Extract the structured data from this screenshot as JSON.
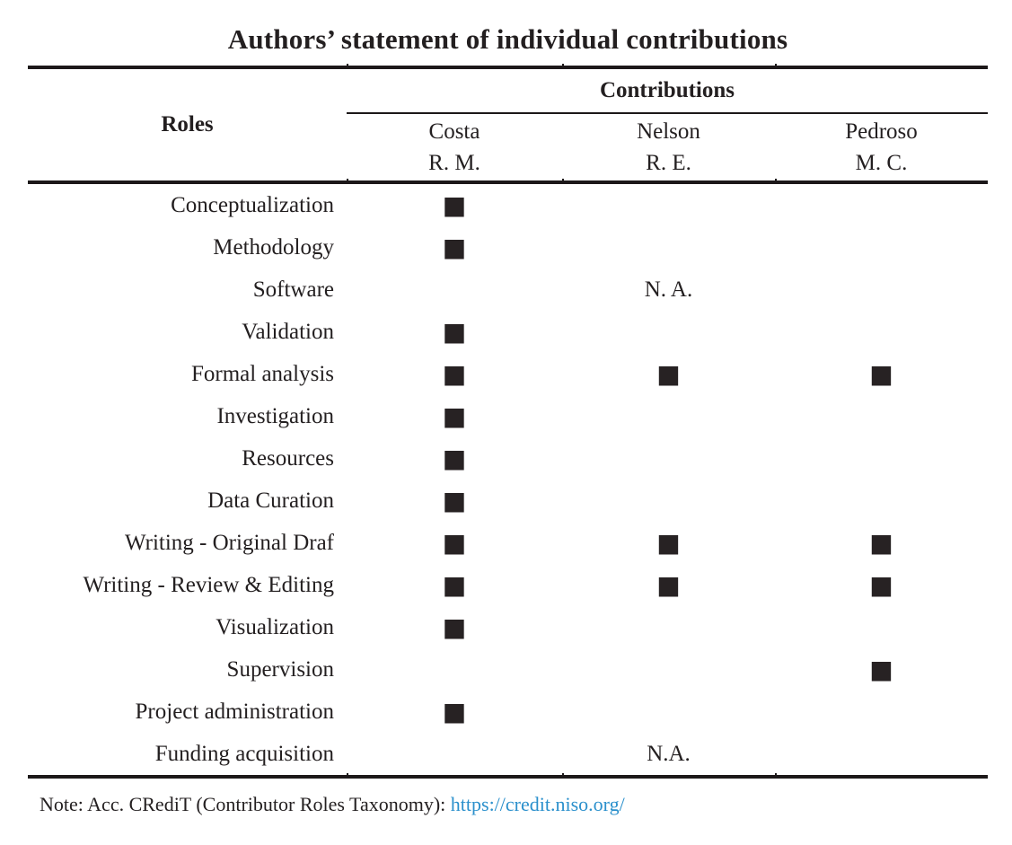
{
  "title": "Authors’ statement of individual contributions",
  "table": {
    "contributions_header": "Contributions",
    "roles_header": "Roles",
    "authors": [
      {
        "name": "Costa",
        "initials": "R. M."
      },
      {
        "name": "Nelson",
        "initials": "R. E."
      },
      {
        "name": "Pedroso",
        "initials": "M. C."
      }
    ],
    "square_icon": "■",
    "rows": [
      {
        "role": "Conceptualization",
        "cells": [
          "■",
          "",
          ""
        ]
      },
      {
        "role": "Methodology",
        "cells": [
          "■",
          "",
          ""
        ]
      },
      {
        "role": "Software",
        "cells": [
          "",
          "N. A.",
          ""
        ]
      },
      {
        "role": "Validation",
        "cells": [
          "■",
          "",
          ""
        ]
      },
      {
        "role": "Formal analysis",
        "cells": [
          "■",
          "■",
          "■"
        ]
      },
      {
        "role": "Investigation",
        "cells": [
          "■",
          "",
          ""
        ]
      },
      {
        "role": "Resources",
        "cells": [
          "■",
          "",
          ""
        ]
      },
      {
        "role": "Data Curation",
        "cells": [
          "■",
          "",
          ""
        ]
      },
      {
        "role": "Writing - Original Draf",
        "cells": [
          "■",
          "■",
          "■"
        ]
      },
      {
        "role": "Writing - Review & Editing",
        "cells": [
          "■",
          "■",
          "■"
        ]
      },
      {
        "role": "Visualization",
        "cells": [
          "■",
          "",
          ""
        ]
      },
      {
        "role": "Supervision",
        "cells": [
          "",
          "",
          "■"
        ]
      },
      {
        "role": "Project administration",
        "cells": [
          "■",
          "",
          ""
        ]
      },
      {
        "role": "Funding acquisition",
        "cells": [
          "",
          "N.A.",
          ""
        ]
      }
    ]
  },
  "note": {
    "text": "Note: Acc. CRediT (Contributor Roles Taxonomy): ",
    "link": "https://credit.niso.org/"
  },
  "colors": {
    "text": "#231f20",
    "rule": "#1c1819",
    "square": "#272223",
    "link": "#2b90cc",
    "background": "#ffffff"
  }
}
